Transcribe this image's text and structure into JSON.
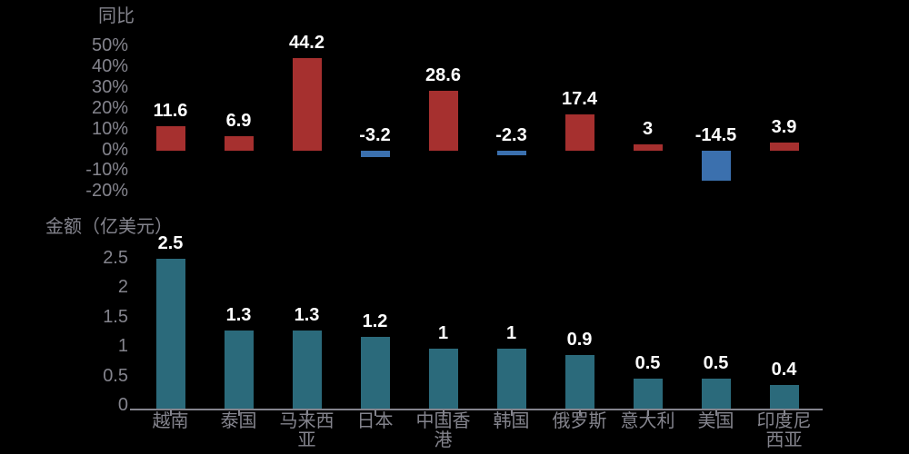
{
  "colors": {
    "background": "#000000",
    "axis_text": "#84848d",
    "value_text": "#ffffff",
    "value_outline": "#000000",
    "yoy_positive_bar": "#a6302f",
    "yoy_negative_bar": "#3b70ae",
    "amount_bar": "#2b6a7b"
  },
  "chart_data": [
    {
      "type": "bar",
      "title": "同比",
      "categories": [
        "越南",
        "泰国",
        "马来西亚",
        "日本",
        "中国香港",
        "韩国",
        "俄罗斯",
        "意大利",
        "美国",
        "印度尼西亚"
      ],
      "values": [
        11.6,
        6.9,
        44.2,
        -3.2,
        28.6,
        -2.3,
        17.4,
        3,
        -14.5,
        3.9
      ],
      "ytick_labels": [
        "50%",
        "40%",
        "30%",
        "20%",
        "10%",
        "0%",
        "-10%",
        "-20%"
      ],
      "ytick_values": [
        50,
        40,
        30,
        20,
        10,
        0,
        -10,
        -20
      ],
      "ylim": [
        -20,
        50
      ],
      "unit": "%",
      "grid": false,
      "legend": null,
      "x_axis_labels_visible": false,
      "color_positive": "#a6302f",
      "color_negative": "#3b70ae"
    },
    {
      "type": "bar",
      "title": "金额（亿美元）",
      "categories": [
        "越南",
        "泰国",
        "马来西亚",
        "日本",
        "中国香港",
        "韩国",
        "俄罗斯",
        "意大利",
        "美国",
        "印度尼西亚"
      ],
      "values": [
        2.5,
        1.3,
        1.3,
        1.2,
        1,
        1,
        0.9,
        0.5,
        0.5,
        0.4
      ],
      "ytick_labels": [
        "2.5",
        "2",
        "1.5",
        "1",
        "0.5",
        "0"
      ],
      "ytick_values": [
        2.5,
        2,
        1.5,
        1,
        0.5,
        0
      ],
      "ylim": [
        0,
        2.5
      ],
      "grid": false,
      "legend": null,
      "x_axis_labels_visible": true,
      "color": "#2b6a7b"
    }
  ]
}
